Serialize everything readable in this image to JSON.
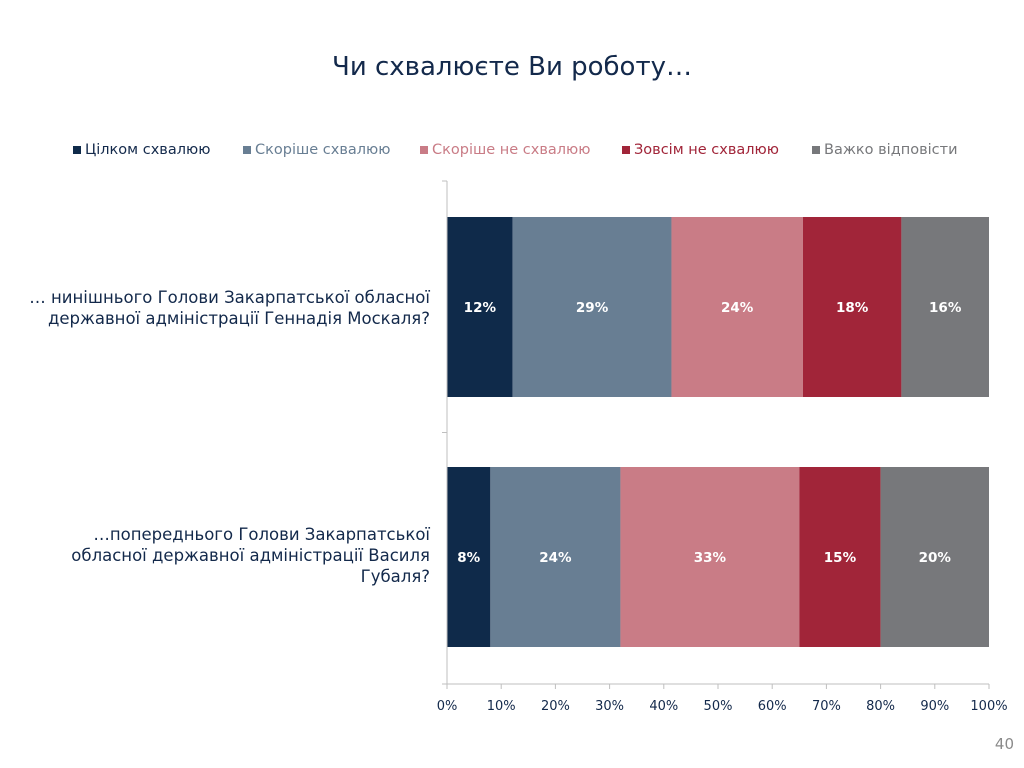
{
  "title": "Чи схвалюєте Ви роботу…",
  "page_number": "40",
  "colors": {
    "title": "#13294b",
    "axis": "#bfbfbf",
    "tick_text": "#13294b",
    "data_label": "#ffffff"
  },
  "chart_data": {
    "type": "bar",
    "orientation": "horizontal",
    "stacked": "percent",
    "categories": [
      "… нинішнього Голови Закарпатської обласної державної адміністрації Геннадія Москаля?",
      "…попереднього Голови Закарпатської обласної державної адміністрації Василя Губаля?"
    ],
    "category_label_lines": [
      [
        "…  нинішнього Голови Закарпатської обласної",
        "державної адміністрації Геннадія Москаля?"
      ],
      [
        "…попереднього Голови Закарпатської",
        "обласної державної адміністрації Василя",
        "Губаля?"
      ]
    ],
    "series": [
      {
        "name": "Цілком схвалюю",
        "color": "#0f2a4a",
        "legend_text_color": "#13294b",
        "values": [
          12,
          8
        ],
        "labels": [
          "12%",
          "8%"
        ]
      },
      {
        "name": "Скоріше схвалюю",
        "color": "#687e93",
        "legend_text_color": "#687e93",
        "values": [
          29,
          24
        ],
        "labels": [
          "29%",
          "24%"
        ]
      },
      {
        "name": "Скоріше не схвалюю",
        "color": "#c97c86",
        "legend_text_color": "#c97c86",
        "values": [
          24,
          33
        ],
        "labels": [
          "24%",
          "33%"
        ]
      },
      {
        "name": "Зовсім не схвалюю",
        "color": "#a12539",
        "legend_text_color": "#a12539",
        "values": [
          18,
          15
        ],
        "labels": [
          "18%",
          "15%"
        ]
      },
      {
        "name": "Важко відповісти",
        "color": "#77787b",
        "legend_text_color": "#77787b",
        "values": [
          16,
          20
        ],
        "labels": [
          "16%",
          "20%"
        ]
      }
    ],
    "x_ticks": [
      "0%",
      "10%",
      "20%",
      "30%",
      "40%",
      "50%",
      "60%",
      "70%",
      "80%",
      "90%",
      "100%"
    ],
    "xlim": [
      0,
      100
    ],
    "grid": false,
    "legend_position": "top"
  }
}
